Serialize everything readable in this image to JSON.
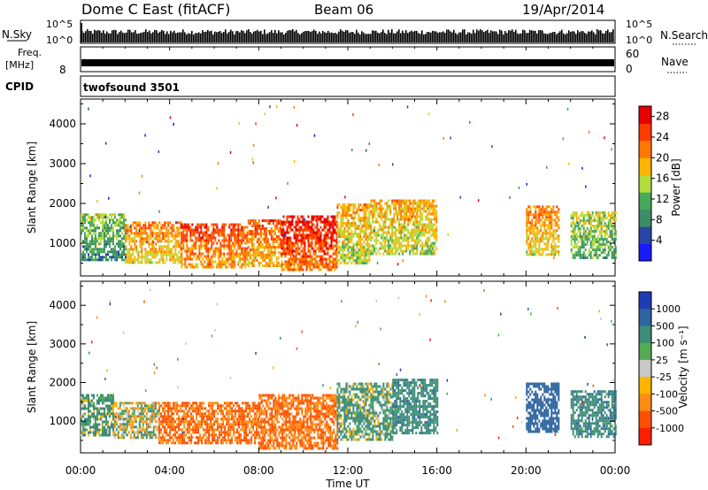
{
  "header": {
    "title": "Dome C East (fitACF)",
    "beam": "Beam 06",
    "date": "19/Apr/2014"
  },
  "top_panels": {
    "nsky_label": "N.Sky",
    "nsky_ticks": [
      "10^5",
      "10^0"
    ],
    "nsearch_label": "N.Search",
    "freq_label_1": "Freq.",
    "freq_label_2": "[MHz]",
    "freq_left_tick": "8",
    "nave_label": "Nave",
    "nave_ticks": [
      "60",
      "0"
    ],
    "cpid_label": "CPID",
    "cpid_value": "twofsound 3501"
  },
  "colors": {
    "power_scale": [
      "#1a1aff",
      "#2846a6",
      "#3c8c64",
      "#48a85a",
      "#b4dc3c",
      "#ffb400",
      "#ff7800",
      "#ff3c00",
      "#e60000"
    ],
    "velocity_scale": [
      "#1e3cb4",
      "#2e64a0",
      "#3c8c78",
      "#54aa54",
      "#c8c8c8",
      "#ffb400",
      "#ff8c14",
      "#ff5000",
      "#ff1e00"
    ]
  },
  "chart_data": [
    {
      "type": "heatmap",
      "panel": "power",
      "ylabel": "Slant Range [km]",
      "yticks": [
        1000,
        2000,
        3000,
        4000
      ],
      "ylim": [
        200,
        4600
      ],
      "xlim": [
        0,
        24
      ],
      "colorbar": {
        "label": "Power [dB]",
        "ticks": [
          "4",
          "8",
          "12",
          "16",
          "20",
          "24",
          "28"
        ],
        "range": [
          0,
          30
        ]
      },
      "patches": [
        {
          "t0": 0.0,
          "t1": 2.0,
          "r0": 550,
          "r1": 1750,
          "v": 14
        },
        {
          "t0": 2.0,
          "t1": 4.5,
          "r0": 500,
          "r1": 1550,
          "v": 22
        },
        {
          "t0": 4.5,
          "t1": 7.5,
          "r0": 400,
          "r1": 1500,
          "v": 25
        },
        {
          "t0": 7.5,
          "t1": 9.0,
          "r0": 450,
          "r1": 1600,
          "v": 24
        },
        {
          "t0": 9.0,
          "t1": 11.5,
          "r0": 300,
          "r1": 1700,
          "v": 28
        },
        {
          "t0": 11.5,
          "t1": 13.0,
          "r0": 500,
          "r1": 2000,
          "v": 20
        },
        {
          "t0": 13.0,
          "t1": 16.0,
          "r0": 700,
          "r1": 2100,
          "v": 20
        },
        {
          "t0": 20.0,
          "t1": 21.5,
          "r0": 700,
          "r1": 1950,
          "v": 22
        },
        {
          "t0": 22.0,
          "t1": 24.0,
          "r0": 600,
          "r1": 1800,
          "v": 16
        }
      ]
    },
    {
      "type": "heatmap",
      "panel": "velocity",
      "ylabel": "Slant Range [km]",
      "yticks": [
        1000,
        2000,
        3000,
        4000
      ],
      "ylim": [
        200,
        4600
      ],
      "xlim": [
        0,
        24
      ],
      "colorbar": {
        "label": "Velocity [m s⁻¹]",
        "ticks": [
          "1000",
          "500",
          "100",
          "25",
          "-25",
          "-100",
          "-500",
          "-1000"
        ]
      },
      "patches": [
        {
          "t0": 0.0,
          "t1": 1.5,
          "r0": 600,
          "r1": 1700,
          "v": 100
        },
        {
          "t0": 1.5,
          "t1": 3.5,
          "r0": 550,
          "r1": 1500,
          "v": 0
        },
        {
          "t0": 3.5,
          "t1": 8.0,
          "r0": 400,
          "r1": 1500,
          "v": -300
        },
        {
          "t0": 8.0,
          "t1": 11.5,
          "r0": 300,
          "r1": 1700,
          "v": -300
        },
        {
          "t0": 11.5,
          "t1": 14.0,
          "r0": 500,
          "r1": 2000,
          "v": 100
        },
        {
          "t0": 14.0,
          "t1": 16.0,
          "r0": 700,
          "r1": 2100,
          "v": 200
        },
        {
          "t0": 20.0,
          "t1": 21.5,
          "r0": 700,
          "r1": 2000,
          "v": 500
        },
        {
          "t0": 22.0,
          "t1": 24.0,
          "r0": 600,
          "r1": 1800,
          "v": 200
        }
      ]
    }
  ],
  "x_axis": {
    "label": "Time UT",
    "ticks": [
      "00:00",
      "04:00",
      "08:00",
      "12:00",
      "16:00",
      "20:00",
      "00:00"
    ]
  }
}
